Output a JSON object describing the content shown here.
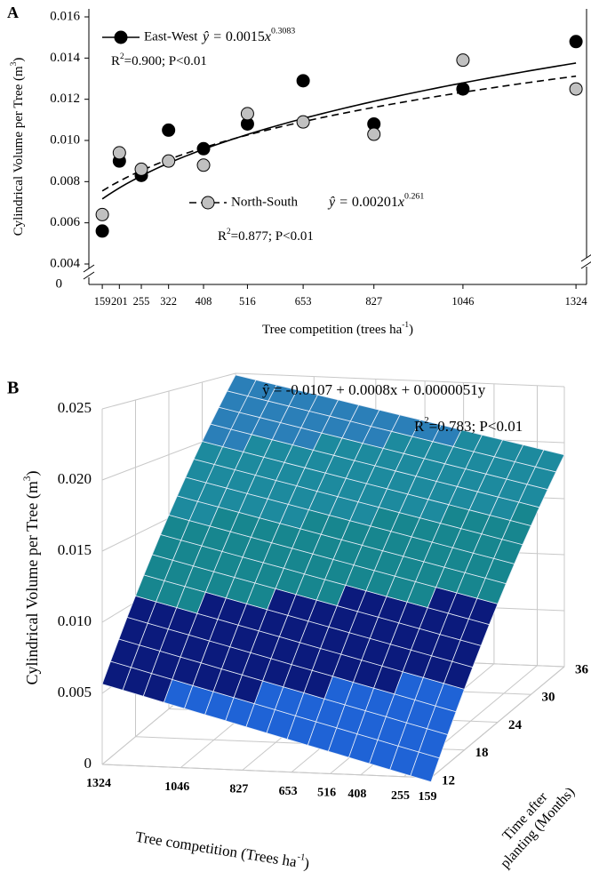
{
  "chart_data": [
    {
      "type": "scatter",
      "panel_label": "A",
      "x": [
        159,
        201,
        255,
        322,
        408,
        516,
        653,
        827,
        1046,
        1324
      ],
      "xlim": [
        126,
        1350
      ],
      "xticks": [
        159,
        201,
        255,
        322,
        408,
        516,
        653,
        827,
        1046,
        1324
      ],
      "ylim": [
        0.004,
        0.016
      ],
      "yticks": [
        0.004,
        0.006,
        0.008,
        {
          "value": 0.01,
          "label": "0.010"
        },
        0.012,
        0.014,
        0.016
      ],
      "y_break_label": "0",
      "xlabel": {
        "text": "Tree competition (trees ha",
        "sup": "-1",
        "end": ")"
      },
      "ylabel": {
        "text": "Cylindrical Volume per Tree (m",
        "sup": "3",
        "end": ")"
      },
      "series": [
        {
          "name": "East-West",
          "color": "#000000",
          "line_style": "solid",
          "values": [
            0.0056,
            0.009,
            0.0083,
            0.0105,
            0.0096,
            0.0108,
            0.0129,
            0.0108,
            0.0125,
            0.0148
          ],
          "fit": {
            "lhs": "ŷ = ",
            "a": 0.0015,
            "var": "x",
            "b": 0.3083
          },
          "stats": {
            "r": "R",
            "sup": "2",
            "text": "=0.900; P<0.01"
          }
        },
        {
          "name": "North-South",
          "color": "#c0c0c0",
          "line_style": "dashed",
          "values": [
            0.0064,
            0.0094,
            0.0086,
            0.009,
            0.0088,
            0.0113,
            0.0109,
            0.0103,
            0.0139,
            0.0125
          ],
          "fit": {
            "lhs": "ŷ = ",
            "a": 0.00201,
            "var": "x",
            "b": 0.261
          },
          "stats": {
            "r": "R",
            "sup": "2",
            "text": "=0.877; P<0.01"
          }
        }
      ]
    },
    {
      "type": "surface",
      "panel_label": "B",
      "fit": {
        "lhs": "ŷ = ",
        "intercept": -0.0107,
        "plus": " + ",
        "b1": 0.0008,
        "var1": "x",
        "b2": 5.1e-06,
        "var2": "y"
      },
      "stats": {
        "r": "R",
        "sup": "2",
        "text": "=0.783; P<0.01"
      },
      "xlabel": {
        "text": "Tree competition (Trees ha",
        "sup": "-1",
        "end": ")"
      },
      "xlim": [
        1324,
        159
      ],
      "xticks": [
        1324,
        1046,
        827,
        653,
        516,
        408,
        255,
        159
      ],
      "ylabel": {
        "lines": [
          "Time after",
          "planting (Months)"
        ]
      },
      "ylim": [
        12,
        36
      ],
      "yticks": [
        12,
        18,
        24,
        30,
        36
      ],
      "zlabel": {
        "text": "Cylindrical Volume per Tree (m",
        "sup": "3",
        "end": ")"
      },
      "zlim": [
        0,
        0.025
      ],
      "zticks": [
        0,
        0.005,
        {
          "value": 0.01,
          "label": "0.010"
        },
        0.015,
        {
          "value": 0.02,
          "label": "0.020"
        },
        0.025
      ],
      "band_colors": [
        "#1f63d6",
        "#0b1a7c",
        "#17868f",
        "#1d8a9e",
        "#2b7fb8"
      ]
    }
  ]
}
